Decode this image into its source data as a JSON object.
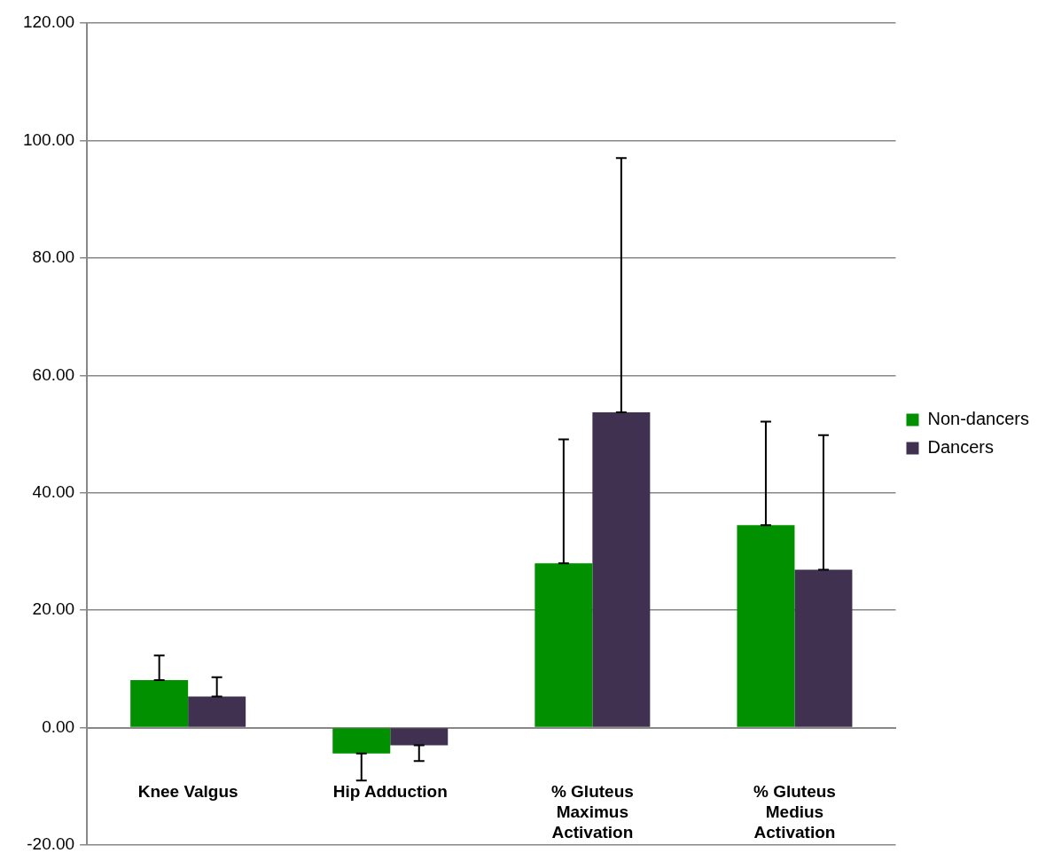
{
  "chart_data": {
    "type": "bar",
    "categories": [
      "Knee Valgus",
      "Hip Adduction",
      "% Gluteus Maximus Activation",
      "% Gluteus Medius Activation"
    ],
    "series": [
      {
        "name": "Non-dancers",
        "color": "#009000",
        "values": [
          8.1,
          -4.4,
          28.0,
          34.5
        ],
        "errors": [
          [
            8.1,
            12.3
          ],
          [
            -9.0,
            -4.4
          ],
          [
            28.0,
            49.1
          ],
          [
            34.5,
            52.1
          ]
        ]
      },
      {
        "name": "Dancers",
        "color": "#403150",
        "values": [
          5.3,
          -3.0,
          53.7,
          26.9
        ],
        "errors": [
          [
            5.3,
            8.6
          ],
          [
            -5.7,
            -3.0
          ],
          [
            53.7,
            97.0
          ],
          [
            26.9,
            49.8
          ]
        ]
      }
    ],
    "ylim": [
      -20,
      120
    ],
    "yticks": [
      {
        "value": -20,
        "label": "-20.00"
      },
      {
        "value": 0,
        "label": "0.00"
      },
      {
        "value": 20,
        "label": "20.00"
      },
      {
        "value": 40,
        "label": "40.00"
      },
      {
        "value": 60,
        "label": "60.00"
      },
      {
        "value": 80,
        "label": "80.00"
      },
      {
        "value": 100,
        "label": "100.00"
      },
      {
        "value": 120,
        "label": "120.00"
      }
    ],
    "grid": "y",
    "legend": "right"
  }
}
